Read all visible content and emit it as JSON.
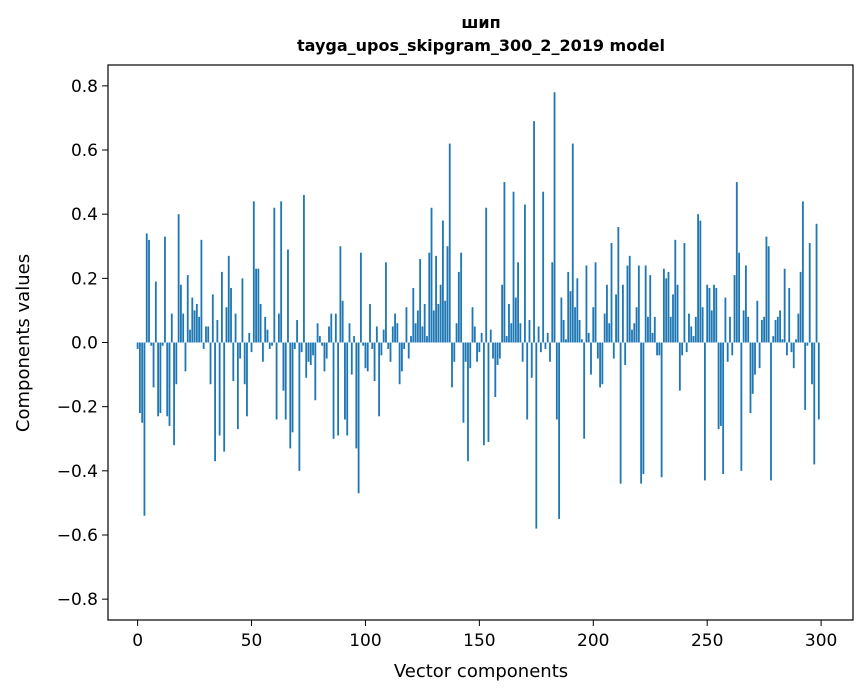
{
  "chart_data": {
    "type": "bar",
    "title_line1": "шип",
    "title_line2": "tayga_upos_skipgram_300_2_2019 model",
    "xlabel": "Vector components",
    "ylabel": "Components values",
    "xlim": [
      -13,
      314
    ],
    "ylim": [
      -0.865,
      0.865
    ],
    "xticks": [
      0,
      50,
      100,
      150,
      200,
      250,
      300
    ],
    "xtick_labels": [
      "0",
      "50",
      "100",
      "150",
      "200",
      "250",
      "300"
    ],
    "yticks": [
      0.8,
      0.6,
      0.4,
      0.2,
      0.0,
      -0.2,
      -0.4,
      -0.6,
      -0.8
    ],
    "ytick_labels": [
      "0.8",
      "0.6",
      "0.4",
      "0.2",
      "0.0",
      "−0.2",
      "−0.4",
      "−0.6",
      "−0.8"
    ],
    "bar_color": "#1f77b4",
    "values": [
      -0.02,
      -0.22,
      -0.25,
      -0.54,
      0.34,
      0.32,
      -0.01,
      -0.14,
      0.19,
      -0.23,
      -0.22,
      -0.01,
      0.33,
      -0.23,
      -0.26,
      0.09,
      -0.32,
      -0.13,
      0.4,
      0.18,
      0.09,
      -0.09,
      0.21,
      0.04,
      0.14,
      0.1,
      0.12,
      0.08,
      0.32,
      -0.02,
      0.05,
      0.05,
      -0.13,
      0.15,
      -0.37,
      0.07,
      -0.29,
      0.22,
      -0.34,
      0.11,
      0.27,
      0.17,
      -0.12,
      0.09,
      -0.27,
      -0.05,
      0.2,
      -0.13,
      -0.23,
      0.03,
      -0.03,
      0.44,
      0.23,
      0.23,
      0.12,
      -0.06,
      0.08,
      0.04,
      -0.02,
      -0.01,
      0.42,
      -0.24,
      0.09,
      0.44,
      -0.15,
      -0.24,
      0.29,
      -0.33,
      -0.28,
      -0.02,
      0.07,
      -0.4,
      -0.03,
      0.46,
      -0.11,
      -0.06,
      -0.07,
      -0.04,
      -0.18,
      0.06,
      0.02,
      -0.01,
      -0.09,
      -0.05,
      0.05,
      0.09,
      -0.3,
      0.09,
      -0.29,
      0.3,
      0.13,
      -0.24,
      -0.29,
      0.06,
      -0.1,
      0.02,
      -0.33,
      -0.47,
      0.28,
      -0.01,
      -0.08,
      -0.09,
      0.12,
      -0.02,
      -0.12,
      0.05,
      -0.23,
      -0.04,
      0.04,
      0.25,
      -0.02,
      -0.06,
      0.05,
      0.09,
      0.06,
      -0.13,
      -0.09,
      -0.02,
      0.11,
      -0.05,
      0.02,
      0.17,
      0.06,
      0.1,
      0.26,
      0.05,
      0.12,
      0.02,
      0.28,
      0.42,
      0.1,
      0.27,
      0.12,
      0.18,
      0.38,
      0.13,
      0.3,
      0.62,
      -0.14,
      -0.06,
      0.06,
      0.22,
      0.28,
      -0.25,
      -0.06,
      -0.37,
      -0.08,
      0.11,
      0.05,
      -0.06,
      -0.03,
      0.03,
      -0.32,
      0.42,
      -0.31,
      0.04,
      -0.05,
      -0.17,
      -0.07,
      -0.05,
      0.18,
      0.5,
      0.02,
      0.12,
      0.06,
      0.47,
      0.14,
      0.25,
      0.06,
      -0.06,
      0.43,
      -0.24,
      0.07,
      -0.11,
      0.69,
      -0.58,
      0.05,
      -0.03,
      0.47,
      -0.02,
      0.03,
      -0.06,
      0.25,
      0.78,
      -0.24,
      -0.55,
      0.14,
      0.07,
      0.01,
      0.22,
      0.16,
      0.62,
      0.11,
      0.2,
      0.07,
      0.01,
      -0.3,
      0.24,
      0.03,
      -0.1,
      0.11,
      0.25,
      -0.05,
      -0.14,
      -0.13,
      0.09,
      0.18,
      0.06,
      0.31,
      -0.05,
      0.15,
      0.36,
      -0.44,
      0.18,
      -0.07,
      0.24,
      0.27,
      0.04,
      0.06,
      0.11,
      0.24,
      -0.44,
      -0.41,
      0.24,
      0.08,
      0.21,
      0.03,
      0.08,
      -0.04,
      -0.04,
      -0.42,
      0.23,
      0.2,
      0.22,
      0.08,
      0.15,
      0.32,
      0.18,
      -0.15,
      -0.04,
      0.31,
      -0.03,
      0.09,
      0.05,
      0.02,
      0.08,
      0.4,
      0.38,
      0.11,
      -0.43,
      0.18,
      0.17,
      0.1,
      0.18,
      0.17,
      -0.27,
      -0.26,
      -0.41,
      0.14,
      -0.06,
      0.08,
      -0.04,
      0.21,
      0.5,
      0.28,
      -0.4,
      0.1,
      0.24,
      0.08,
      -0.22,
      -0.16,
      -0.1,
      0.13,
      -0.08,
      0.07,
      0.08,
      0.33,
      0.3,
      -0.43,
      0.02,
      0.07,
      0.08,
      0.1,
      0.01,
      0.23,
      -0.04,
      0.17,
      -0.03,
      -0.08,
      0.01,
      0.09,
      0.22,
      0.44,
      -0.21,
      -0.01,
      0.31,
      -0.13,
      -0.38,
      0.37,
      -0.24
    ]
  }
}
